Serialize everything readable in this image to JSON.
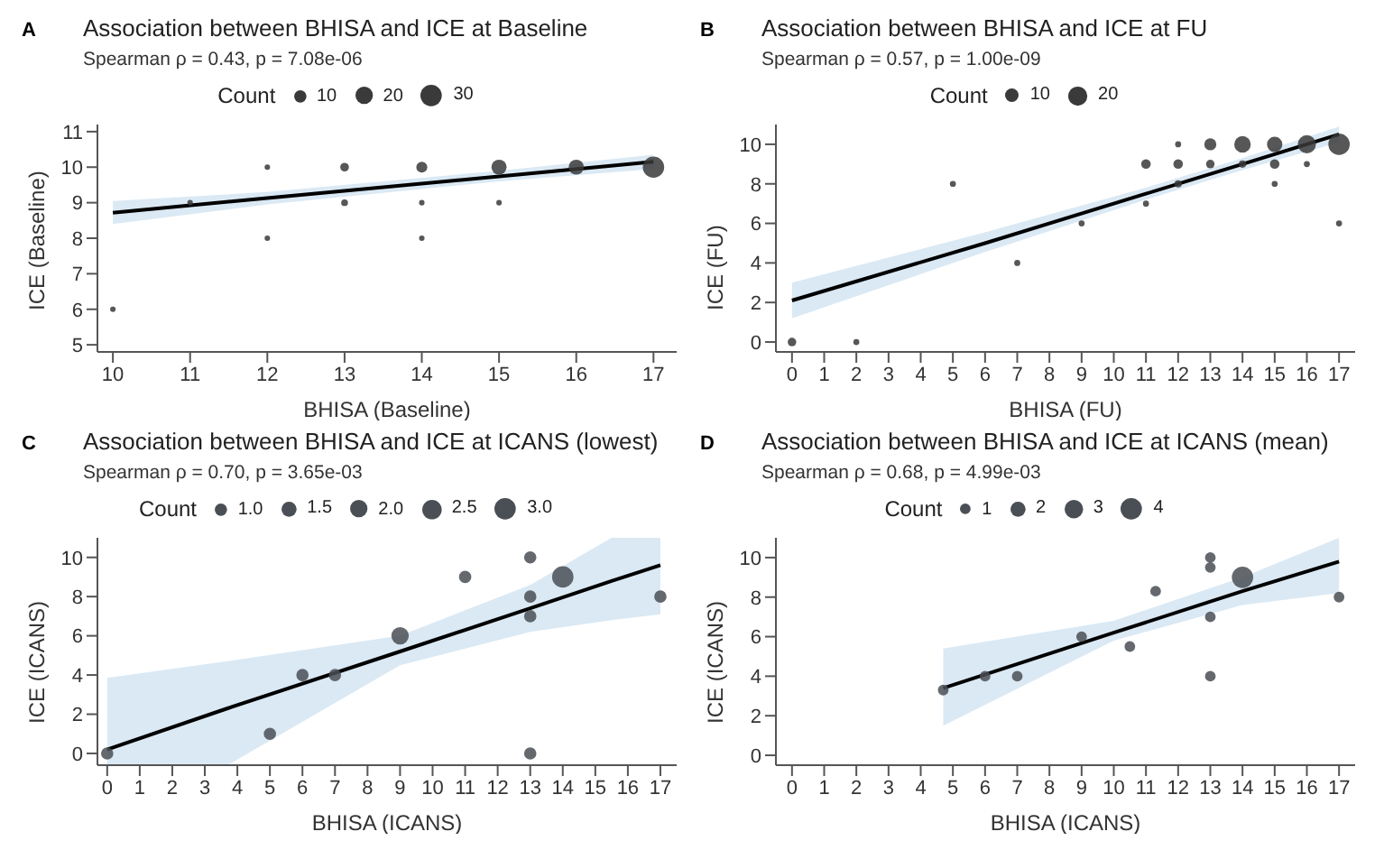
{
  "chart_data": [
    {
      "type": "bubble",
      "title": "Association between BHISA and ICE at Baseline",
      "subtitle": "Spearman ρ = 0.43, p = 7.08e-06",
      "annotations": [
        "A"
      ],
      "xlabel": "BHISA (Baseline)",
      "ylabel": "ICE (Baseline)",
      "legend_title": "Count",
      "size_legend": [
        10,
        20,
        30
      ],
      "xlim": [
        9.8,
        17.3
      ],
      "xticks": [
        10,
        11,
        12,
        13,
        14,
        15,
        16,
        17
      ],
      "ylim": [
        4.8,
        11.2
      ],
      "yticks": [
        5,
        6,
        7,
        8,
        9,
        10,
        11
      ],
      "series": [
        {
          "type": "bubble",
          "color": "#3a3a3a",
          "x": [
            10,
            11,
            12,
            12,
            13,
            13,
            14,
            14,
            14,
            15,
            15,
            16,
            17
          ],
          "values": [
            6,
            9,
            10,
            8,
            10,
            9,
            10,
            9,
            8,
            10,
            9,
            10,
            10
          ],
          "sizes": [
            2,
            2,
            2,
            2,
            5,
            3,
            8,
            2,
            2,
            15,
            2,
            15,
            30
          ]
        },
        {
          "type": "line",
          "color": "#000000",
          "x": [
            10,
            12,
            15,
            17
          ],
          "values": [
            8.72,
            9.13,
            9.74,
            10.15
          ],
          "lower": [
            8.4,
            8.95,
            9.6,
            9.95
          ],
          "upper": [
            9.05,
            9.3,
            9.9,
            10.35
          ]
        }
      ]
    },
    {
      "type": "bubble",
      "title": "Association between BHISA and ICE at FU",
      "subtitle": "Spearman ρ = 0.57, p = 1.00e-09",
      "annotations": [
        "B"
      ],
      "xlabel": "BHISA (FU)",
      "ylabel": "ICE (FU)",
      "legend_title": "Count",
      "size_legend": [
        10,
        20
      ],
      "xlim": [
        -0.5,
        17.5
      ],
      "xticks": [
        0,
        1,
        2,
        3,
        4,
        5,
        6,
        7,
        8,
        9,
        10,
        11,
        12,
        13,
        14,
        15,
        16,
        17
      ],
      "ylim": [
        -0.5,
        11
      ],
      "yticks": [
        0,
        2,
        4,
        6,
        8,
        10
      ],
      "series": [
        {
          "type": "bubble",
          "color": "#3a3a3a",
          "x": [
            0,
            2,
            5,
            7,
            9,
            11,
            11,
            12,
            12,
            12,
            13,
            13,
            14,
            14,
            15,
            15,
            15,
            16,
            16,
            17,
            17
          ],
          "values": [
            0,
            0,
            8,
            4,
            6,
            9,
            7,
            10,
            9,
            8,
            10,
            9,
            10,
            9,
            10,
            9,
            8,
            10,
            9,
            10,
            6
          ],
          "sizes": [
            4,
            2,
            2,
            2,
            2,
            5,
            2,
            2,
            5,
            3,
            8,
            4,
            15,
            3,
            13,
            5,
            2,
            18,
            2,
            25,
            2
          ]
        },
        {
          "type": "line",
          "color": "#000000",
          "x": [
            0,
            6,
            11,
            14,
            17
          ],
          "values": [
            2.1,
            5.0,
            7.5,
            9.0,
            10.5
          ],
          "lower": [
            1.2,
            4.55,
            7.2,
            8.7,
            10.1
          ],
          "upper": [
            3.0,
            5.55,
            7.8,
            9.3,
            10.9
          ]
        }
      ]
    },
    {
      "type": "bubble",
      "title": "Association between BHISA and ICE at ICANS (lowest)",
      "subtitle": "Spearman ρ = 0.70, p = 3.65e-03",
      "annotations": [
        "C"
      ],
      "xlabel": "BHISA (ICANS)",
      "ylabel": "ICE (ICANS)",
      "legend_title": "Count",
      "size_legend": [
        {
          "value": 1,
          "label": "1.0"
        },
        1.5,
        {
          "value": 2,
          "label": "2.0"
        },
        2.5,
        {
          "value": 3,
          "label": "3.0"
        }
      ],
      "xlim": [
        -0.3,
        17.5
      ],
      "xticks": [
        0,
        1,
        2,
        3,
        4,
        5,
        6,
        7,
        8,
        9,
        10,
        11,
        12,
        13,
        14,
        15,
        16,
        17
      ],
      "ylim": [
        -0.6,
        11
      ],
      "yticks": [
        0,
        2,
        4,
        6,
        8,
        10
      ],
      "series": [
        {
          "type": "bubble",
          "color": "#4a4f55",
          "x": [
            0,
            5,
            6,
            7,
            9,
            11,
            13,
            13,
            13,
            13,
            14,
            17
          ],
          "values": [
            0,
            1,
            4,
            4,
            6,
            9,
            10,
            8,
            7,
            0,
            9,
            8
          ],
          "sizes": [
            1,
            1,
            1,
            1,
            2,
            1,
            1,
            1,
            1,
            1,
            3,
            1
          ]
        },
        {
          "type": "line",
          "color": "#000000",
          "x": [
            0,
            3.7,
            9,
            13,
            15.5,
            17
          ],
          "values": [
            0.2,
            2.3,
            5.2,
            7.4,
            8.8,
            9.6
          ],
          "lower": [
            -0.6,
            -0.6,
            4.5,
            6.2,
            6.8,
            7.1
          ],
          "upper": [
            3.85,
            4.7,
            6.0,
            8.6,
            11,
            11
          ]
        }
      ]
    },
    {
      "type": "bubble",
      "title": "Association between BHISA and ICE at ICANS (mean)",
      "subtitle": "Spearman ρ = 0.68, p = 4.99e-03",
      "annotations": [
        "D"
      ],
      "xlabel": "BHISA (ICANS)",
      "ylabel": "ICE (ICANS)",
      "legend_title": "Count",
      "size_legend": [
        1,
        2,
        3,
        4
      ],
      "xlim": [
        -0.5,
        17.5
      ],
      "xticks": [
        0,
        1,
        2,
        3,
        4,
        5,
        6,
        7,
        8,
        9,
        10,
        11,
        12,
        13,
        14,
        15,
        16,
        17
      ],
      "ylim": [
        -0.5,
        11
      ],
      "yticks": [
        0,
        2,
        4,
        6,
        8,
        10
      ],
      "series": [
        {
          "type": "bubble",
          "color": "#4a4f55",
          "x": [
            4.7,
            6,
            7,
            9,
            10.5,
            11.3,
            13,
            13,
            13,
            13,
            14,
            17
          ],
          "values": [
            3.3,
            4,
            4,
            6,
            5.5,
            8.3,
            10,
            9.5,
            7,
            4,
            9,
            8
          ],
          "sizes": [
            1,
            1,
            1,
            1,
            1,
            1,
            1,
            1,
            1,
            1,
            4,
            1
          ]
        },
        {
          "type": "line",
          "color": "#000000",
          "x": [
            4.7,
            10,
            14,
            17
          ],
          "values": [
            3.4,
            6.2,
            8.3,
            9.8
          ],
          "lower": [
            1.5,
            5.8,
            7.6,
            8.2
          ],
          "upper": [
            5.4,
            6.8,
            9.0,
            11
          ]
        }
      ]
    }
  ]
}
